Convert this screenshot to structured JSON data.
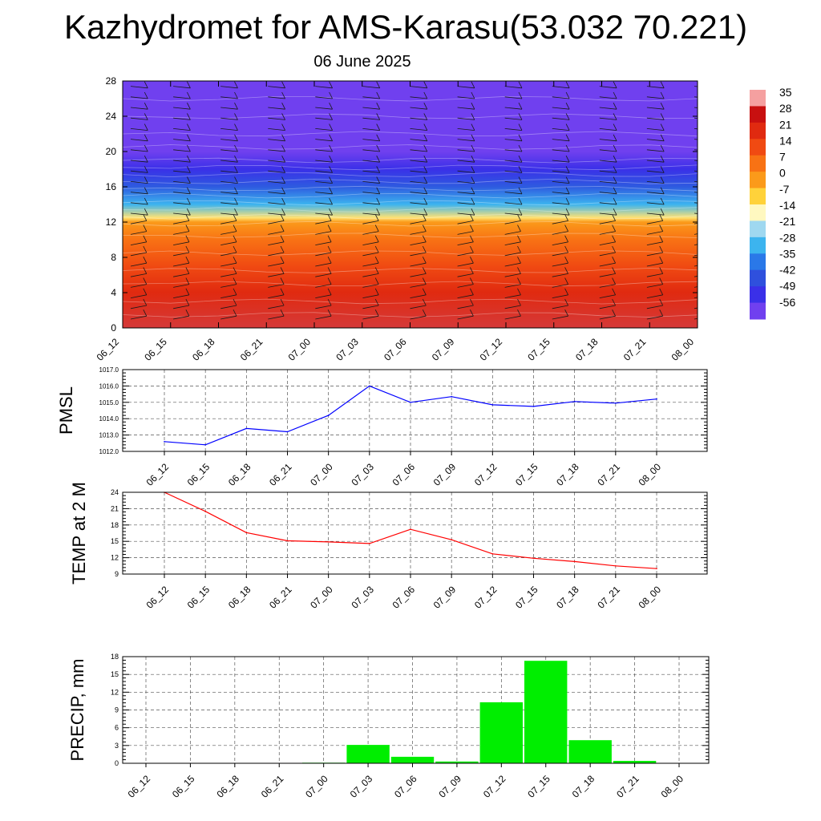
{
  "title": "Kazhydromet for AMS-Karasu(53.032 70.221)",
  "date": "06 June 2025",
  "time_labels": [
    "06_12",
    "06_15",
    "06_18",
    "06_21",
    "07_00",
    "07_03",
    "07_06",
    "07_09",
    "07_12",
    "07_15",
    "07_18",
    "07_21",
    "08_00"
  ],
  "colorbar": {
    "labels": [
      "35",
      "28",
      "21",
      "14",
      "7",
      "0",
      "-7",
      "-14",
      "-21",
      "-28",
      "-35",
      "-42",
      "-49",
      "-56"
    ],
    "colors": [
      "#f5a0a0",
      "#c81010",
      "#e02a10",
      "#f04a12",
      "#f87214",
      "#fb9a1a",
      "#ffd23a",
      "#fff8c0",
      "#9fd8f0",
      "#3cb4ef",
      "#2a78e8",
      "#2f50dd",
      "#3a30e8",
      "#7040ef"
    ]
  },
  "chart_data": [
    {
      "type": "heatmap",
      "name": "vertical-profile",
      "x": [
        "06_12",
        "06_15",
        "06_18",
        "06_21",
        "07_00",
        "07_03",
        "07_06",
        "07_09",
        "07_12",
        "07_15",
        "07_18",
        "07_21",
        "08_00"
      ],
      "yticks": [
        "0",
        "4",
        "8",
        "12",
        "16",
        "20",
        "24",
        "28"
      ],
      "ylim": [
        0,
        28
      ],
      "zlim": [
        -56,
        35
      ],
      "color_layers": [
        {
          "y": 0,
          "value": 30
        },
        {
          "y": 4,
          "value": 21
        },
        {
          "y": 7,
          "value": 14
        },
        {
          "y": 10,
          "value": 7
        },
        {
          "y": 12,
          "value": 0
        },
        {
          "y": 12.5,
          "value": -10
        },
        {
          "y": 14,
          "value": -28
        },
        {
          "y": 16,
          "value": -40
        },
        {
          "y": 18,
          "value": -49
        },
        {
          "y": 20,
          "value": -56
        },
        {
          "y": 28,
          "value": -56
        }
      ]
    },
    {
      "type": "line",
      "name": "pmsl",
      "ylabel": "PMSL",
      "x": [
        "06_12",
        "06_15",
        "06_18",
        "06_21",
        "07_00",
        "07_03",
        "07_06",
        "07_09",
        "07_12",
        "07_15",
        "07_18",
        "07_21",
        "08_00"
      ],
      "values": [
        1012.6,
        1012.4,
        1013.4,
        1013.2,
        1014.2,
        1016.0,
        1015.0,
        1015.35,
        1014.85,
        1014.75,
        1015.05,
        1014.95,
        1015.2
      ],
      "ylim": [
        1012.0,
        1017.0
      ],
      "yticks": [
        "1012.0",
        "1013.0",
        "1014.0",
        "1015.0",
        "1016.0",
        "1017.0"
      ],
      "color": "#0000ff",
      "grid": true
    },
    {
      "type": "line",
      "name": "temp",
      "ylabel": "TEMP at 2 M",
      "x": [
        "06_12",
        "06_15",
        "06_18",
        "06_21",
        "07_00",
        "07_03",
        "07_06",
        "07_09",
        "07_12",
        "07_15",
        "07_18",
        "07_21",
        "08_00"
      ],
      "values": [
        24.0,
        20.5,
        16.6,
        15.1,
        14.9,
        14.6,
        17.2,
        15.3,
        12.7,
        11.9,
        11.3,
        10.5,
        10.0
      ],
      "ylim": [
        9,
        24
      ],
      "yticks": [
        "9",
        "12",
        "15",
        "18",
        "21",
        "24"
      ],
      "color": "#ff0000",
      "grid": true
    },
    {
      "type": "bar",
      "name": "precip",
      "ylabel": "PRECIP, mm",
      "categories": [
        "06_12",
        "06_15",
        "06_18",
        "06_21",
        "07_00",
        "07_03",
        "07_06",
        "07_09",
        "07_12",
        "07_15",
        "07_18",
        "07_21",
        "08_00"
      ],
      "values": [
        0,
        0,
        0,
        0,
        0.1,
        3.1,
        1.1,
        0.3,
        10.3,
        17.3,
        3.9,
        0.4,
        0
      ],
      "ylim": [
        0,
        18
      ],
      "yticks": [
        "0",
        "3",
        "6",
        "9",
        "12",
        "15",
        "18"
      ],
      "color": "#00ee00",
      "grid": true
    }
  ]
}
